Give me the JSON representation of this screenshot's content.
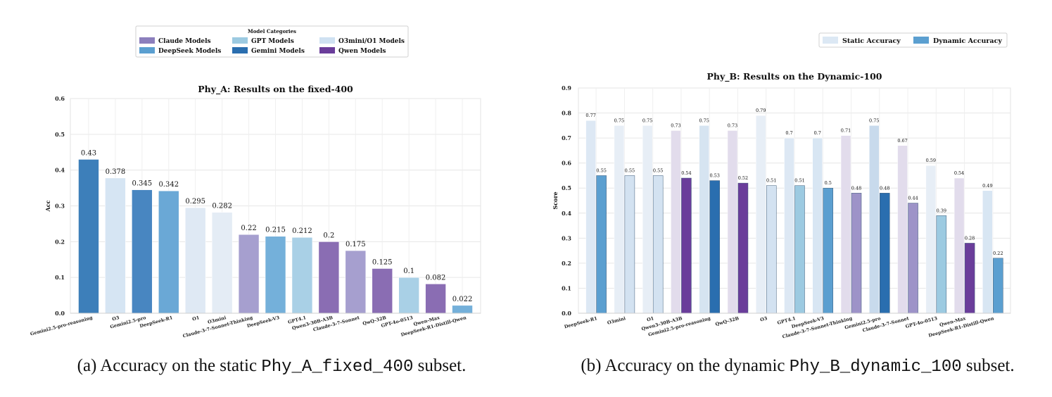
{
  "chart_data": [
    {
      "type": "bar",
      "title": "Phy_A: Results on the fixed-400",
      "xlabel": "",
      "ylabel": "Acc",
      "ylim": [
        0,
        0.6
      ],
      "yticks": [
        "0.0",
        "0.1",
        "0.2",
        "0.3",
        "0.4",
        "0.5",
        "0.6"
      ],
      "grid": true,
      "legend": {
        "title": "Model Categories",
        "placement": "top-center",
        "entries": [
          {
            "label": "Claude Models",
            "color": "#8c7fbd"
          },
          {
            "label": "GPT Models",
            "color": "#9ccae1"
          },
          {
            "label": "O3mini/O1 Models",
            "color": "#cfe1f2"
          },
          {
            "label": "DeepSeek Models",
            "color": "#5b9fd0"
          },
          {
            "label": "Gemini Models",
            "color": "#2a6eaf"
          },
          {
            "label": "Qwen Models",
            "color": "#6a3d9a"
          }
        ]
      },
      "categories": [
        "Gemini2.5-pro-reasoning",
        "O3",
        "Gemini2.5-pro",
        "DeepSeek-R1",
        "O1",
        "O3mini",
        "Claude-3-7-Sonnet-Thinking",
        "DeepSeek-V3",
        "GPT4.1",
        "Qwen3-30B-A3B",
        "Claude-3-7-Sonnet",
        "QwQ-32B",
        "GPT-4o-0513",
        "Qwen-Max",
        "DeepSeek-R1-Distill-Qwen"
      ],
      "values": [
        0.43,
        0.378,
        0.345,
        0.342,
        0.295,
        0.282,
        0.22,
        0.215,
        0.212,
        0.2,
        0.175,
        0.125,
        0.1,
        0.082,
        0.022
      ],
      "value_labels": [
        "0.43",
        "0.378",
        "0.345",
        "0.342",
        "0.295",
        "0.282",
        "0.22",
        "0.215",
        "0.212",
        "0.2",
        "0.175",
        "0.125",
        "0.1",
        "0.082",
        "0.022"
      ],
      "colors": [
        "#3d7fba",
        "#d6e5f3",
        "#4886c1",
        "#6aa8d6",
        "#dfe9f4",
        "#e4ecf5",
        "#a69fcf",
        "#74b0da",
        "#a9d0e6",
        "#8a6db3",
        "#a69fcf",
        "#8a6db3",
        "#a9d0e6",
        "#8a6db3",
        "#74b0da"
      ]
    },
    {
      "type": "bar",
      "title": "Phy_B: Results on the Dynamic-100",
      "xlabel": "",
      "ylabel": "Score",
      "ylim": [
        0,
        0.9
      ],
      "yticks": [
        "0.0",
        "0.1",
        "0.2",
        "0.3",
        "0.4",
        "0.5",
        "0.6",
        "0.7",
        "0.8",
        "0.9"
      ],
      "grid": true,
      "legend": {
        "placement": "top-right",
        "entries": [
          {
            "label": "Static Accuracy",
            "color": "#dce8f4"
          },
          {
            "label": "Dynamic Accuracy",
            "color": "#5b9fd0"
          }
        ]
      },
      "categories": [
        "DeepSeek-R1",
        "O3mini",
        "O1",
        "Qwen3-30B-A3B",
        "Gemini2.5-pro-reasoning",
        "QwQ-32B",
        "O3",
        "GPT4.1",
        "DeepSeek-V3",
        "Claude-3-7-Sonnet-Thinking",
        "Gemini2.5-pro",
        "Claude-3-7-Sonnet",
        "GPT-4o-0513",
        "Qwen-Max",
        "DeepSeek-R1-Distill-Qwen"
      ],
      "series": [
        {
          "name": "Static Accuracy",
          "values": [
            0.77,
            0.75,
            0.75,
            0.73,
            0.75,
            0.73,
            0.79,
            0.7,
            0.7,
            0.71,
            0.75,
            0.67,
            0.59,
            0.54,
            0.49
          ],
          "value_labels": [
            "0.77",
            "0.75",
            "0.75",
            "0.73",
            "0.75",
            "0.73",
            "0.79",
            "0.7",
            "0.7",
            "0.71",
            "0.75",
            "0.67",
            "0.59",
            "0.54",
            "0.49"
          ],
          "colors": [
            "#dde8f4",
            "#e7eef6",
            "#e7eef6",
            "#e2dcec",
            "#d6e4f1",
            "#e2dcec",
            "#e7eef6",
            "#dde8f4",
            "#d8e6f3",
            "#e2dcec",
            "#c8daec",
            "#e2dcec",
            "#e7eef6",
            "#e2dcec",
            "#d8e6f3"
          ]
        },
        {
          "name": "Dynamic Accuracy",
          "values": [
            0.55,
            0.55,
            0.55,
            0.54,
            0.53,
            0.52,
            0.51,
            0.51,
            0.5,
            0.48,
            0.48,
            0.44,
            0.39,
            0.28,
            0.22
          ],
          "value_labels": [
            "0.55",
            "0.55",
            "0.55",
            "0.54",
            "0.53",
            "0.52",
            "0.51",
            "0.51",
            "0.5",
            "0.48",
            "0.48",
            "0.44",
            "0.39",
            "0.28",
            "0.22"
          ],
          "colors": [
            "#5b9fd0",
            "#d3e2f1",
            "#d3e2f1",
            "#6a3d9a",
            "#2a6eaf",
            "#6a3d9a",
            "#d3e2f1",
            "#9ccae1",
            "#5b9fd0",
            "#9d93c8",
            "#2a6eaf",
            "#9d93c8",
            "#9ccae1",
            "#6a3d9a",
            "#5b9fd0"
          ]
        }
      ]
    }
  ],
  "captions": {
    "a": {
      "prefix": "(a) Accuracy on the static ",
      "code": "Phy_A_fixed_400",
      "suffix": " subset."
    },
    "b": {
      "prefix": "(b) Accuracy on the dynamic ",
      "code": "Phy_B_dynamic_100",
      "suffix": " subset."
    }
  }
}
